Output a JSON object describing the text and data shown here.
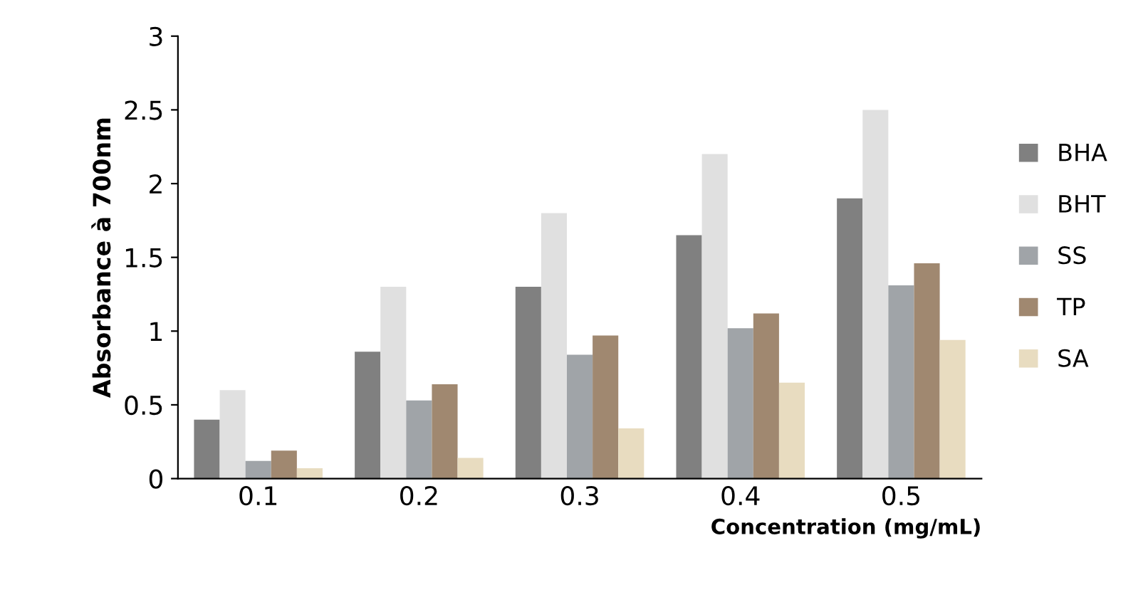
{
  "chart_data": {
    "type": "bar",
    "xlabel": "Concentration (mg/mL)",
    "ylabel": "Absorbance à 700nm",
    "categories": [
      "0.1",
      "0.2",
      "0.3",
      "0.4",
      "0.5"
    ],
    "series": [
      {
        "name": "BHA",
        "color": "#808080",
        "values": [
          0.4,
          0.86,
          1.3,
          1.65,
          1.9
        ]
      },
      {
        "name": "BHT",
        "color": "#e0e0e0",
        "values": [
          0.6,
          1.3,
          1.8,
          2.2,
          2.5
        ]
      },
      {
        "name": "SS",
        "color": "#a0a4a8",
        "values": [
          0.12,
          0.53,
          0.84,
          1.02,
          1.31
        ]
      },
      {
        "name": "TP",
        "color": "#a08870",
        "values": [
          0.19,
          0.64,
          0.97,
          1.12,
          1.46
        ]
      },
      {
        "name": "SA",
        "color": "#e8dcc0",
        "values": [
          0.07,
          0.14,
          0.34,
          0.65,
          0.94
        ]
      }
    ],
    "ylim": [
      0,
      3
    ],
    "yticks": [
      0,
      0.5,
      1,
      1.5,
      2,
      2.5,
      3
    ],
    "grid": false,
    "legend": "right"
  }
}
